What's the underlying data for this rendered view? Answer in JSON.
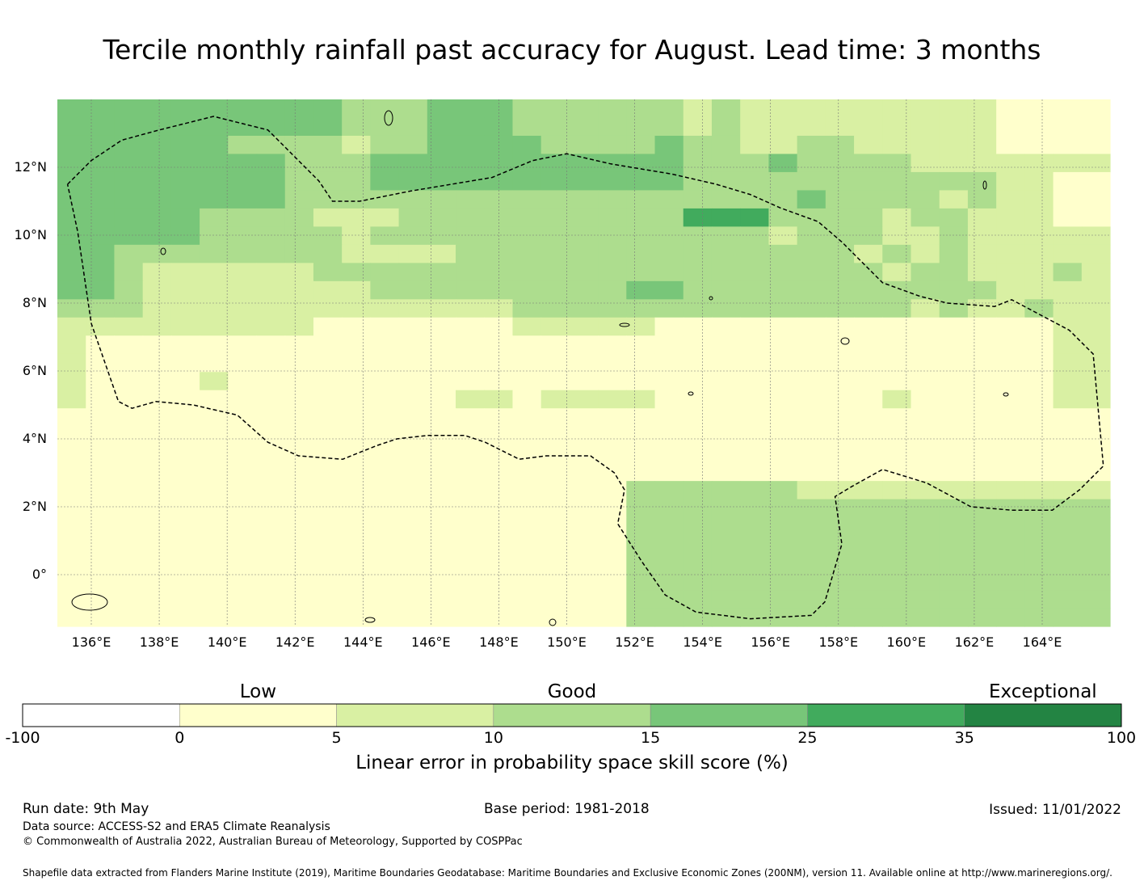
{
  "title": "Tercile monthly rainfall past accuracy for August. Lead time: 3 months",
  "map": {
    "lon_range": [
      135,
      166
    ],
    "lat_range": [
      -1.5,
      14
    ],
    "lat_ticks": [
      "12°N",
      "10°N",
      "8°N",
      "6°N",
      "4°N",
      "2°N",
      "0°"
    ],
    "lat_values": [
      12,
      10,
      8,
      6,
      4,
      2,
      0
    ],
    "lon_ticks": [
      "136°E",
      "138°E",
      "140°E",
      "142°E",
      "144°E",
      "146°E",
      "148°E",
      "150°E",
      "152°E",
      "154°E",
      "156°E",
      "158°E",
      "160°E",
      "162°E",
      "164°E"
    ],
    "lon_values": [
      136,
      138,
      140,
      142,
      144,
      146,
      148,
      150,
      152,
      154,
      156,
      158,
      160,
      162,
      164
    ],
    "grid_resolution_deg": [
      0.833,
      0.555
    ],
    "grid": [
      "3333333333222333222222121111111110000",
      "3333333333222333222222121111111110000",
      "3333332222122333322223221122111110000",
      "3333333322233333333333222322221111111",
      "3333333322233333333333222222222221100",
      "3333333322222222222222222232222121100",
      "3333322221112222222222444222212211100",
      "3333322222122222222222222122211211111",
      "3322222222111122222222222222121211111",
      "3321111112222222222222222222212211121",
      "3321111111122222222233222222222221111",
      "2221111111111111222222222222221211211",
      "1111111110000000111110000000000000011",
      "1000000000000000000000000000000000011",
      "1000000000000000000000000000000000011",
      "1000010000000000000000000000000000011",
      "1000000000000011011110000000010000011",
      "0000000000000000000000000000000000000",
      "0000000000000000000000000000000000000",
      "0000000000000000000000000000000000000",
      "0000000000000000000000000000000000000",
      "0000000000000000000022222211111111111",
      "0000000000000000000022222222222222222",
      "0000000000000000000022222222222222222",
      "0000000000000000000022222222222222222",
      "0000000000000000000022222222222222222",
      "0000000000000000000022222222222222222",
      "0000000000000000000022222222222222222",
      "0000000000000000000022222222222222222"
    ],
    "boundary_lonlat": [
      [
        135.3,
        11.5
      ],
      [
        136.0,
        12.2
      ],
      [
        136.9,
        12.8
      ],
      [
        138.0,
        13.1
      ],
      [
        139.6,
        13.5
      ],
      [
        141.2,
        13.1
      ],
      [
        142.7,
        11.6
      ],
      [
        143.1,
        11.0
      ],
      [
        143.9,
        11.0
      ],
      [
        145.4,
        11.3
      ],
      [
        146.6,
        11.5
      ],
      [
        147.8,
        11.7
      ],
      [
        149.0,
        12.2
      ],
      [
        150.0,
        12.4
      ],
      [
        151.3,
        12.1
      ],
      [
        153.1,
        11.8
      ],
      [
        154.4,
        11.5
      ],
      [
        155.4,
        11.2
      ],
      [
        156.3,
        10.8
      ],
      [
        157.4,
        10.4
      ],
      [
        158.1,
        9.8
      ],
      [
        159.3,
        8.6
      ],
      [
        160.4,
        8.2
      ],
      [
        161.2,
        8.0
      ],
      [
        162.6,
        7.9
      ],
      [
        163.1,
        8.1
      ],
      [
        164.8,
        7.2
      ],
      [
        165.5,
        6.5
      ],
      [
        165.8,
        3.2
      ],
      [
        165.1,
        2.5
      ],
      [
        164.3,
        1.9
      ],
      [
        163.1,
        1.9
      ],
      [
        161.9,
        2.0
      ],
      [
        160.6,
        2.7
      ],
      [
        159.3,
        3.1
      ],
      [
        158.4,
        2.6
      ],
      [
        157.9,
        2.3
      ],
      [
        158.1,
        0.9
      ],
      [
        157.6,
        -0.8
      ],
      [
        157.2,
        -1.2
      ],
      [
        155.4,
        -1.3
      ],
      [
        153.8,
        -1.1
      ],
      [
        152.9,
        -0.6
      ],
      [
        152.2,
        0.4
      ],
      [
        151.5,
        1.5
      ],
      [
        151.7,
        2.5
      ],
      [
        151.4,
        3.0
      ],
      [
        150.7,
        3.5
      ],
      [
        149.4,
        3.5
      ],
      [
        148.6,
        3.4
      ],
      [
        147.6,
        3.9
      ],
      [
        147.0,
        4.1
      ],
      [
        145.9,
        4.1
      ],
      [
        145.0,
        4.0
      ],
      [
        144.4,
        3.8
      ],
      [
        143.4,
        3.4
      ],
      [
        142.1,
        3.5
      ],
      [
        141.2,
        3.9
      ],
      [
        140.3,
        4.7
      ],
      [
        139.0,
        5.0
      ],
      [
        137.9,
        5.1
      ],
      [
        137.2,
        4.9
      ],
      [
        136.8,
        5.1
      ],
      [
        136.0,
        7.4
      ],
      [
        135.6,
        10.1
      ],
      [
        135.3,
        11.5
      ]
    ]
  },
  "colorbar": {
    "ticks": [
      "-100",
      "0",
      "5",
      "10",
      "15",
      "25",
      "35",
      "100"
    ],
    "colors": [
      "#ffffff",
      "#ffffcc",
      "#d9f0a3",
      "#addd8e",
      "#78c679",
      "#41ab5d",
      "#238443"
    ],
    "categories": [
      {
        "label": "Low",
        "position_index": 1
      },
      {
        "label": "Good",
        "position_index": 3
      },
      {
        "label": "Exceptional",
        "position_index": 6
      }
    ],
    "label": "Linear error in probability space skill score (%)"
  },
  "footer": {
    "run_date": "Run date: 9th May",
    "base_period": "Base period: 1981-2018",
    "issued": "Issued: 11/01/2022",
    "data_source": "Data source: ACCESS-S2 and ERA5 Climate Reanalysis",
    "copyright": "© Commonwealth of Australia 2022, Australian Bureau of Meteorology, Supported by COSPPac",
    "shapefile_note": "Shapefile data extracted from Flanders Marine Institute (2019), Maritime Boundaries Geodatabase: Maritime Boundaries and Exclusive Economic Zones (200NM), version 11. Available online at http://www.marineregions.org/."
  }
}
